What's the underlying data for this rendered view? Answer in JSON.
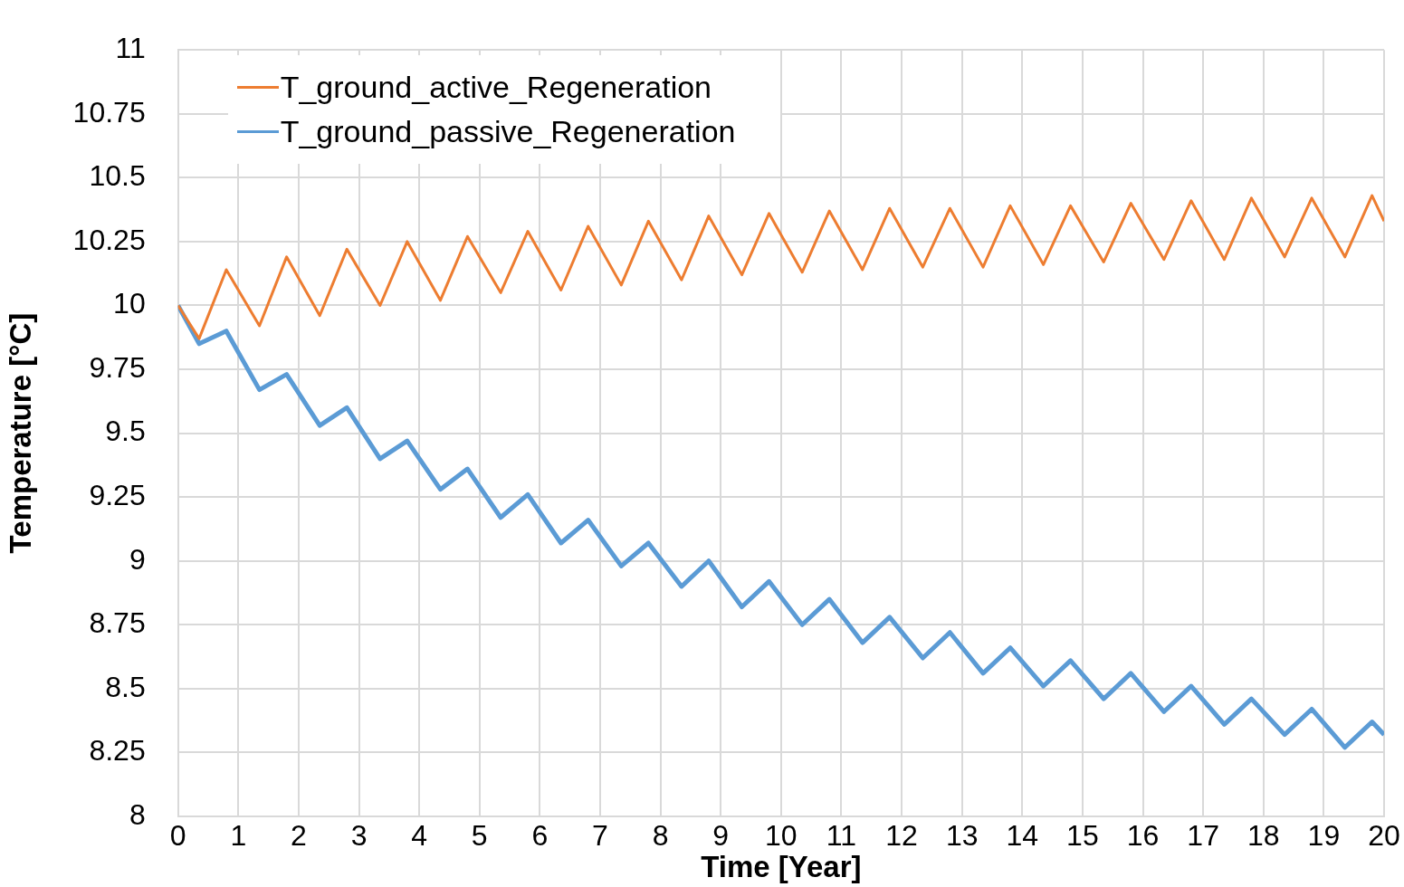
{
  "chart_data": {
    "type": "line",
    "xlabel": "Time [Year]",
    "ylabel": "Temperature [°C]",
    "x": [
      0,
      0.35,
      0.8,
      1.35,
      1.8,
      2.35,
      2.8,
      3.35,
      3.8,
      4.35,
      4.8,
      5.35,
      5.8,
      6.35,
      6.8,
      7.35,
      7.8,
      8.35,
      8.8,
      9.35,
      9.8,
      10.35,
      10.8,
      11.35,
      11.8,
      12.35,
      12.8,
      13.35,
      13.8,
      14.35,
      14.8,
      15.35,
      15.8,
      16.35,
      16.8,
      17.35,
      17.8,
      18.35,
      18.8,
      19.35,
      19.8,
      20
    ],
    "series": [
      {
        "name": "T_ground_active_Regeneration",
        "color": "#ed7d31",
        "values": [
          10.0,
          9.87,
          10.14,
          9.92,
          10.19,
          9.96,
          10.22,
          10.0,
          10.25,
          10.02,
          10.27,
          10.05,
          10.29,
          10.06,
          10.31,
          10.08,
          10.33,
          10.1,
          10.35,
          10.12,
          10.36,
          10.13,
          10.37,
          10.14,
          10.38,
          10.15,
          10.38,
          10.15,
          10.39,
          10.16,
          10.39,
          10.17,
          10.4,
          10.18,
          10.41,
          10.18,
          10.42,
          10.19,
          10.42,
          10.19,
          10.43,
          10.33
        ]
      },
      {
        "name": "T_ground_passive_Regeneration",
        "color": "#5b9bd5",
        "values": [
          10.0,
          9.85,
          9.9,
          9.67,
          9.73,
          9.53,
          9.6,
          9.4,
          9.47,
          9.28,
          9.36,
          9.17,
          9.26,
          9.07,
          9.16,
          8.98,
          9.07,
          8.9,
          9.0,
          8.82,
          8.92,
          8.75,
          8.85,
          8.68,
          8.78,
          8.62,
          8.72,
          8.56,
          8.66,
          8.51,
          8.61,
          8.46,
          8.56,
          8.41,
          8.51,
          8.36,
          8.46,
          8.32,
          8.42,
          8.27,
          8.37,
          8.32
        ]
      }
    ],
    "xlim": [
      0,
      20
    ],
    "xticks": [
      0,
      1,
      2,
      3,
      4,
      5,
      6,
      7,
      8,
      9,
      10,
      11,
      12,
      13,
      14,
      15,
      16,
      17,
      18,
      19,
      20
    ],
    "ylim": [
      8,
      11
    ],
    "yticks": [
      8,
      8.25,
      8.5,
      8.75,
      9,
      9.25,
      9.5,
      9.75,
      10,
      10.25,
      10.5,
      10.75,
      11
    ],
    "grid": true,
    "legend": "top left",
    "marker": "none",
    "line_style": "solid"
  }
}
